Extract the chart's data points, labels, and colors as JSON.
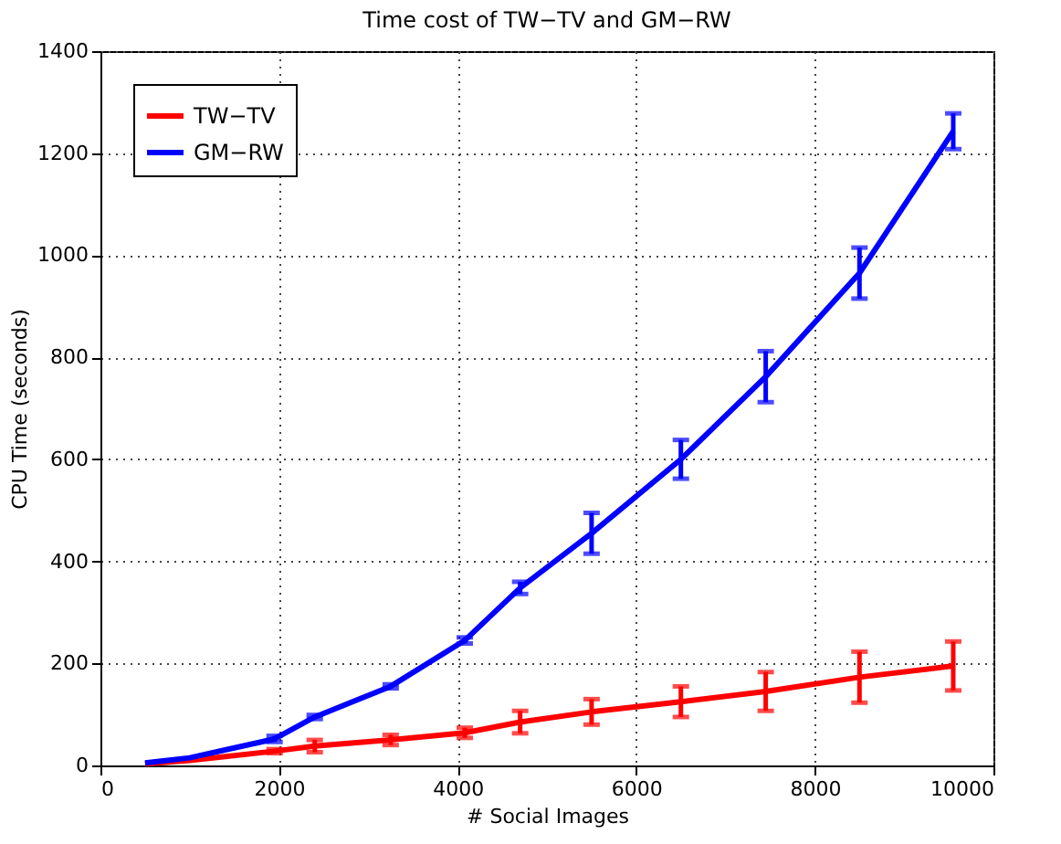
{
  "chart_data": {
    "type": "line",
    "title": "Time cost of TW−TV and GM−RW",
    "xlabel": "# Social Images",
    "ylabel": "CPU Time (seconds)",
    "x": [
      500,
      1000,
      1950,
      2400,
      3250,
      4080,
      4700,
      5500,
      6500,
      7450,
      8500,
      9550
    ],
    "series": [
      {
        "name": "TW−TV",
        "color": "#ff0000",
        "values": [
          3,
          10,
          28,
          38,
          50,
          64,
          85,
          105,
          125,
          145,
          173,
          195
        ],
        "errors": [
          null,
          null,
          4,
          12,
          10,
          10,
          22,
          25,
          30,
          38,
          50,
          48
        ]
      },
      {
        "name": "GM−RW",
        "color": "#0000ff",
        "values": [
          5,
          15,
          52,
          95,
          155,
          245,
          348,
          455,
          600,
          762,
          965,
          1243
        ],
        "errors": [
          null,
          null,
          6,
          4,
          4,
          6,
          12,
          40,
          38,
          50,
          50,
          35
        ]
      }
    ],
    "xlim": [
      0,
      10000
    ],
    "xticks": [
      0,
      2000,
      4000,
      6000,
      8000,
      10000
    ],
    "ylim": [
      0,
      1400
    ],
    "yticks": [
      0,
      200,
      400,
      600,
      800,
      1000,
      1200,
      1400
    ],
    "grid": true,
    "legend": "top left",
    "marker": "none",
    "line_style": "solid"
  }
}
